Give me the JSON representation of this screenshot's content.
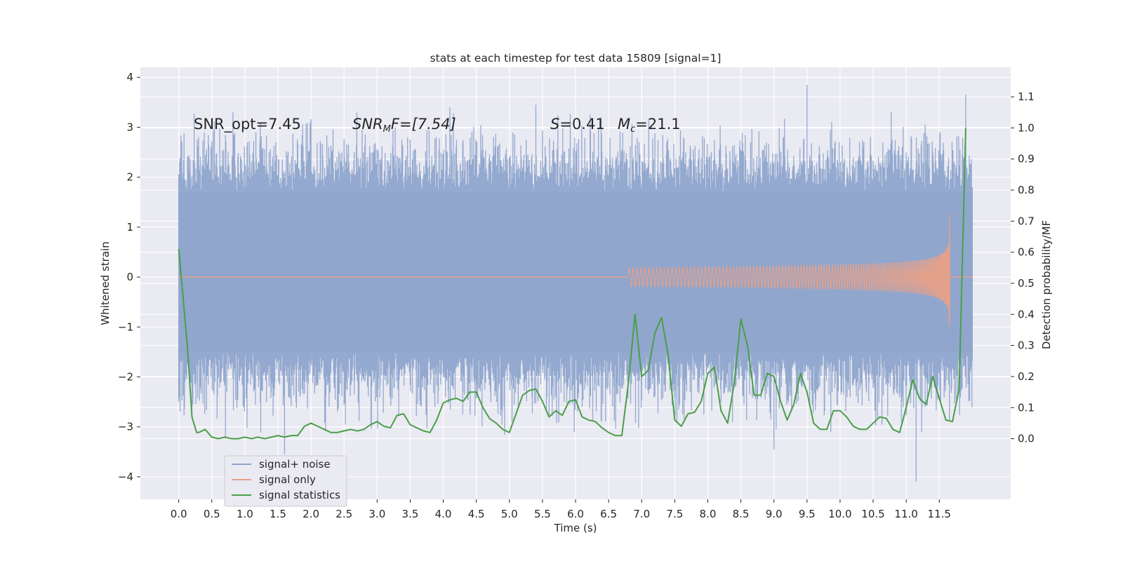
{
  "chart_data": {
    "type": "line",
    "title": "stats at each timestep for test data 15809 [signal=1]",
    "xlabel": "Time (s)",
    "ylabel": "Whitened strain",
    "y2label": "Detection probability/MF",
    "xlim": [
      -0.58,
      12.58
    ],
    "ylim": [
      -4.45,
      4.2
    ],
    "y2lim": [
      -0.195,
      1.195
    ],
    "x_ticks": [
      0.0,
      0.5,
      1.0,
      1.5,
      2.0,
      2.5,
      3.0,
      3.5,
      4.0,
      4.5,
      5.0,
      5.5,
      6.0,
      6.5,
      7.0,
      7.5,
      8.0,
      8.5,
      9.0,
      9.5,
      10.0,
      10.5,
      11.0,
      11.5
    ],
    "x_tick_labels": [
      "0.0",
      "0.5",
      "1.0",
      "1.5",
      "2.0",
      "2.5",
      "3.0",
      "3.5",
      "4.0",
      "4.5",
      "5.0",
      "5.5",
      "6.0",
      "6.5",
      "7.0",
      "7.5",
      "8.0",
      "8.5",
      "9.0",
      "9.5",
      "10.0",
      "10.5",
      "11.0",
      "11.5"
    ],
    "y_ticks": [
      4,
      3,
      2,
      1,
      0,
      -1,
      -2,
      -3,
      -4
    ],
    "y_tick_labels": [
      "4",
      "3",
      "2",
      "1",
      "0",
      "−1",
      "−2",
      "−3",
      "−4"
    ],
    "y2_ticks": [
      1.1,
      1.0,
      0.9,
      0.8,
      0.7,
      0.6,
      0.5,
      0.4,
      0.3,
      0.2,
      0.1,
      0.0
    ],
    "y2_tick_labels": [
      "1.1",
      "1.0",
      "0.9",
      "0.8",
      "0.7",
      "0.6",
      "0.5",
      "0.4",
      "0.3",
      "0.2",
      "0.1",
      "0.0"
    ],
    "grid": true,
    "legend_position": "bottom-left",
    "annotations": {
      "snr_opt": "SNR_opt=7.45",
      "snr_mf_main": "SNR",
      "snr_mf_sub": "M",
      "snr_mf_rest": "F=[7.54]",
      "s_var": "S",
      "s_val": "=0.41",
      "mc_var": "M",
      "mc_sub": "c",
      "mc_val": "=21.1"
    },
    "series": [
      {
        "name": "signal+ noise",
        "color": "#8fa5cc",
        "t_start": 0.0,
        "t_end": 12.0,
        "envelope_typical": [
          -1.5,
          1.7
        ],
        "extremes": [
          {
            "x": 9.5,
            "y": 3.85
          },
          {
            "x": 11.9,
            "y": 3.65
          },
          {
            "x": 5.4,
            "y": 3.45
          },
          {
            "x": 4.1,
            "y": 3.4
          },
          {
            "x": 11.15,
            "y": -4.1
          },
          {
            "x": 1.6,
            "y": -3.55
          },
          {
            "x": 9.0,
            "y": -3.45
          }
        ]
      },
      {
        "name": "signal only",
        "color": "#e8a088",
        "t_merger": 11.66,
        "amplitude_peak": 1.48
      },
      {
        "name": "signal statistics",
        "color": "#4a9e4a",
        "axis": "right",
        "x": [
          0.0,
          0.13,
          0.2,
          0.27,
          0.3,
          0.4,
          0.5,
          0.6,
          0.7,
          0.8,
          0.9,
          1.0,
          1.1,
          1.2,
          1.3,
          1.4,
          1.5,
          1.6,
          1.7,
          1.8,
          1.9,
          2.0,
          2.1,
          2.2,
          2.3,
          2.4,
          2.5,
          2.6,
          2.7,
          2.8,
          2.9,
          3.0,
          3.1,
          3.2,
          3.3,
          3.4,
          3.5,
          3.6,
          3.7,
          3.8,
          3.9,
          4.0,
          4.1,
          4.2,
          4.3,
          4.4,
          4.5,
          4.6,
          4.7,
          4.8,
          4.9,
          5.0,
          5.1,
          5.2,
          5.3,
          5.4,
          5.5,
          5.6,
          5.7,
          5.8,
          5.9,
          6.0,
          6.1,
          6.2,
          6.3,
          6.4,
          6.5,
          6.6,
          6.7,
          6.8,
          6.9,
          7.0,
          7.1,
          7.2,
          7.3,
          7.4,
          7.5,
          7.6,
          7.7,
          7.8,
          7.9,
          8.0,
          8.1,
          8.2,
          8.3,
          8.4,
          8.5,
          8.6,
          8.7,
          8.8,
          8.9,
          9.0,
          9.1,
          9.2,
          9.3,
          9.4,
          9.5,
          9.6,
          9.7,
          9.8,
          9.9,
          10.0,
          10.1,
          10.2,
          10.3,
          10.4,
          10.5,
          10.6,
          10.7,
          10.8,
          10.9,
          11.0,
          11.1,
          11.2,
          11.3,
          11.4,
          11.5,
          11.6,
          11.7,
          11.8,
          11.9
        ],
        "y": [
          0.61,
          0.3,
          0.07,
          0.02,
          0.02,
          0.03,
          0.005,
          0.0,
          0.005,
          0.0,
          0.0,
          0.005,
          0.0,
          0.005,
          0.0,
          0.005,
          0.01,
          0.005,
          0.01,
          0.01,
          0.04,
          0.05,
          0.04,
          0.03,
          0.02,
          0.02,
          0.025,
          0.03,
          0.025,
          0.03,
          0.045,
          0.055,
          0.04,
          0.035,
          0.075,
          0.08,
          0.045,
          0.035,
          0.025,
          0.02,
          0.06,
          0.115,
          0.125,
          0.13,
          0.12,
          0.15,
          0.15,
          0.1,
          0.065,
          0.05,
          0.03,
          0.02,
          0.08,
          0.14,
          0.155,
          0.16,
          0.12,
          0.07,
          0.09,
          0.075,
          0.12,
          0.125,
          0.07,
          0.06,
          0.055,
          0.035,
          0.02,
          0.01,
          0.01,
          0.18,
          0.4,
          0.2,
          0.22,
          0.34,
          0.39,
          0.27,
          0.06,
          0.04,
          0.08,
          0.085,
          0.12,
          0.21,
          0.23,
          0.09,
          0.05,
          0.18,
          0.385,
          0.3,
          0.14,
          0.14,
          0.21,
          0.2,
          0.12,
          0.06,
          0.11,
          0.21,
          0.15,
          0.05,
          0.03,
          0.03,
          0.09,
          0.09,
          0.07,
          0.04,
          0.03,
          0.03,
          0.05,
          0.07,
          0.065,
          0.03,
          0.02,
          0.1,
          0.19,
          0.13,
          0.11,
          0.2,
          0.13,
          0.06,
          0.055,
          0.16,
          1.0
        ]
      }
    ]
  }
}
